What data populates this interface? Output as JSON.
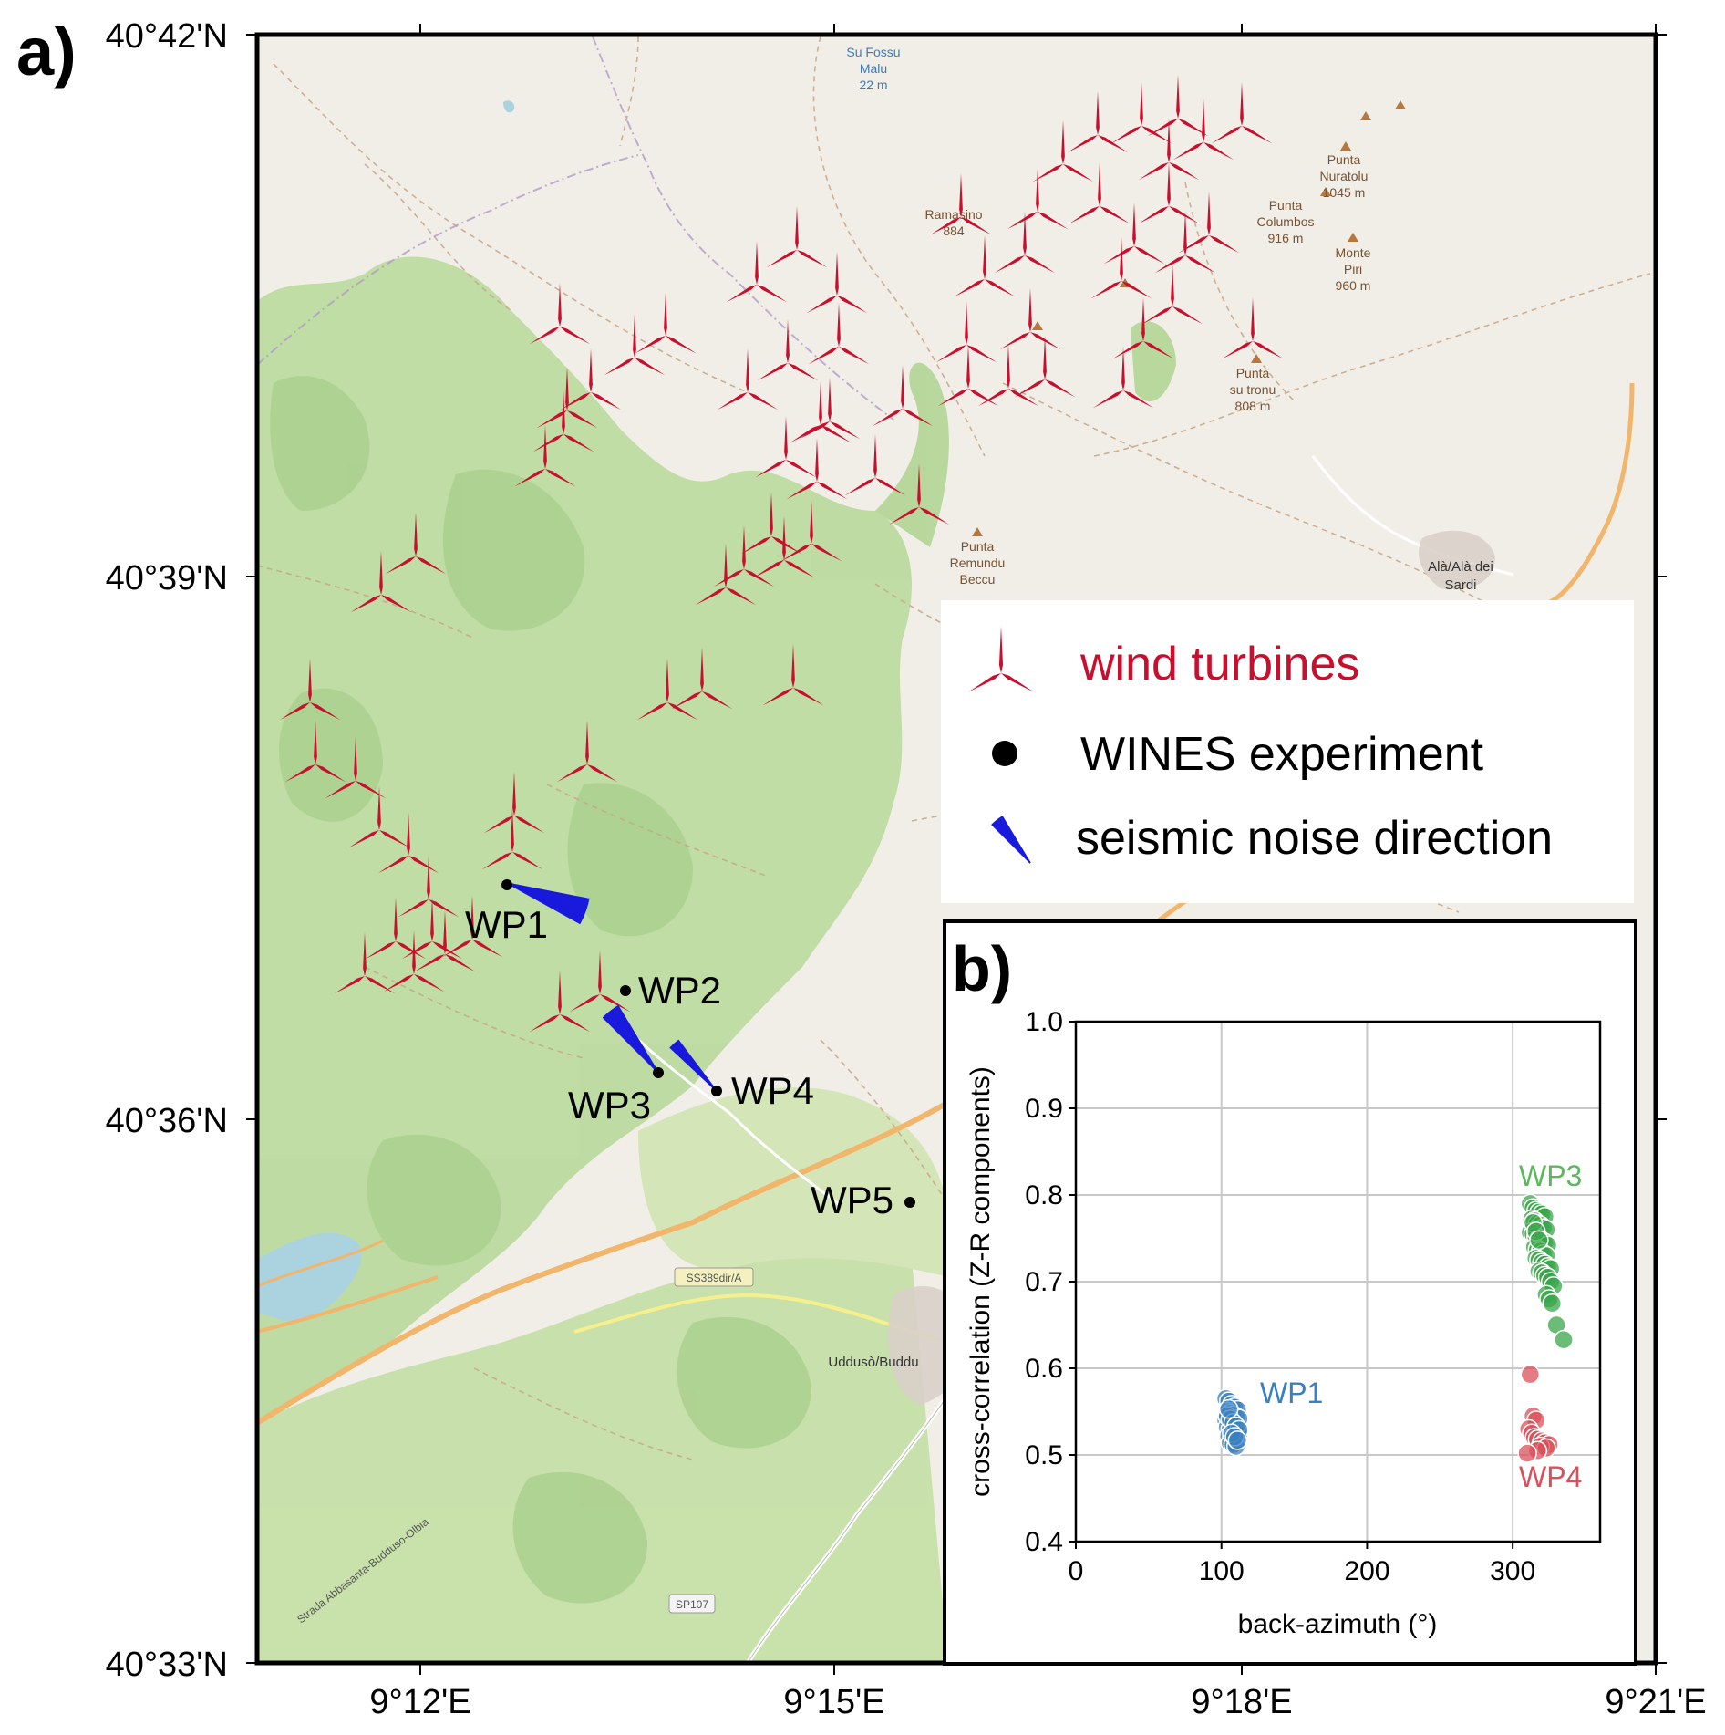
{
  "panel_a_label": "a)",
  "panel_b_label": "b)",
  "map": {
    "lat_ticks": [
      "40°42'N",
      "40°39'N",
      "40°36'N",
      "40°33'N"
    ],
    "lon_ticks": [
      "9°12'E",
      "9°15'E",
      "9°18'E",
      "9°21'E"
    ],
    "colors": {
      "turbine": "#c8102e",
      "noise": "#1a1adc",
      "station": "#000000",
      "forest": "#b9d99a",
      "land": "#f1eee8"
    },
    "stations": [
      {
        "name": "WP1"
      },
      {
        "name": "WP2"
      },
      {
        "name": "WP3"
      },
      {
        "name": "WP4"
      },
      {
        "name": "WP5"
      }
    ],
    "place_labels": {
      "su_fossu_1": "Su Fossu",
      "su_fossu_2": "Malu",
      "su_fossu_3": "22 m",
      "punta_nuratolu_1": "Punta",
      "punta_nuratolu_2": "Nuratolu",
      "punta_nuratolu_3": "1045 m",
      "punta_columbos_1": "Punta",
      "punta_columbos_2": "Columbos",
      "punta_columbos_3": "916 m",
      "monte_piri_1": "Monte",
      "monte_piri_2": "Piri",
      "monte_piri_3": "960 m",
      "punta_su_tronu_1": "Punta",
      "punta_su_tronu_2": "su tronu",
      "punta_su_tronu_3": "808 m",
      "ramasino_1": "Ramasino",
      "ramasino_2": "884",
      "punta_remundu_1": "Punta",
      "punta_remundu_2": "Remundu",
      "punta_remundu_3": "Beccu",
      "ala_1": "Alà/Alà dei",
      "ala_2": "Sardi",
      "uddus": "Uddusò/Buddu",
      "road_ss389": "SS389dir/A",
      "road_sp107": "SP107",
      "road_strada": "Strada Abbasanta-Budduso-Olbia"
    }
  },
  "legend": {
    "turbines": "wind turbines",
    "experiment": "WINES experiment",
    "noise": "seismic noise direction"
  },
  "chart_data": {
    "type": "scatter",
    "xlabel": "back-azimuth (°)",
    "ylabel": "cross-correlation (Z-R components)",
    "xlim": [
      0,
      360
    ],
    "ylim": [
      0.4,
      1.0
    ],
    "xticks": [
      "0",
      "100",
      "200",
      "300"
    ],
    "yticks": [
      "0.4",
      "0.5",
      "0.6",
      "0.7",
      "0.8",
      "0.9",
      "1.0"
    ],
    "grid": true,
    "series": [
      {
        "name": "WP1",
        "color": "#3a80c0",
        "x": [
          103,
          105,
          107,
          109,
          111,
          104,
          106,
          108,
          110,
          112,
          103,
          105,
          107,
          109,
          104,
          106,
          108,
          110,
          112,
          105,
          107,
          109,
          111,
          106,
          108,
          110,
          104,
          106,
          108,
          110,
          112,
          107,
          109,
          111,
          105
        ],
        "y": [
          0.565,
          0.562,
          0.558,
          0.555,
          0.552,
          0.55,
          0.548,
          0.546,
          0.544,
          0.542,
          0.54,
          0.538,
          0.536,
          0.534,
          0.532,
          0.53,
          0.528,
          0.526,
          0.524,
          0.522,
          0.52,
          0.518,
          0.516,
          0.514,
          0.512,
          0.51,
          0.545,
          0.541,
          0.537,
          0.533,
          0.529,
          0.525,
          0.521,
          0.517,
          0.553
        ]
      },
      {
        "name": "WP3",
        "color": "#3aa64a",
        "x": [
          312,
          314,
          316,
          318,
          320,
          322,
          313,
          315,
          317,
          319,
          321,
          323,
          312,
          314,
          316,
          318,
          320,
          322,
          324,
          315,
          317,
          319,
          321,
          323,
          316,
          318,
          320,
          322,
          324,
          326,
          318,
          320,
          322,
          324,
          326,
          328,
          323,
          325,
          327,
          330,
          335,
          314,
          316,
          318
        ],
        "y": [
          0.79,
          0.785,
          0.782,
          0.78,
          0.778,
          0.775,
          0.772,
          0.77,
          0.767,
          0.765,
          0.762,
          0.76,
          0.757,
          0.755,
          0.752,
          0.75,
          0.747,
          0.745,
          0.742,
          0.74,
          0.737,
          0.735,
          0.732,
          0.73,
          0.727,
          0.725,
          0.722,
          0.72,
          0.717,
          0.715,
          0.712,
          0.71,
          0.707,
          0.705,
          0.7,
          0.695,
          0.685,
          0.68,
          0.675,
          0.65,
          0.633,
          0.768,
          0.758,
          0.748
        ]
      },
      {
        "name": "WP4",
        "color": "#d9505a",
        "x": [
          312,
          314,
          316,
          311,
          313,
          315,
          317,
          320,
          322,
          325,
          319,
          323,
          317,
          310
        ],
        "y": [
          0.593,
          0.545,
          0.54,
          0.53,
          0.525,
          0.52,
          0.518,
          0.516,
          0.514,
          0.512,
          0.51,
          0.508,
          0.505,
          0.502
        ]
      }
    ]
  }
}
